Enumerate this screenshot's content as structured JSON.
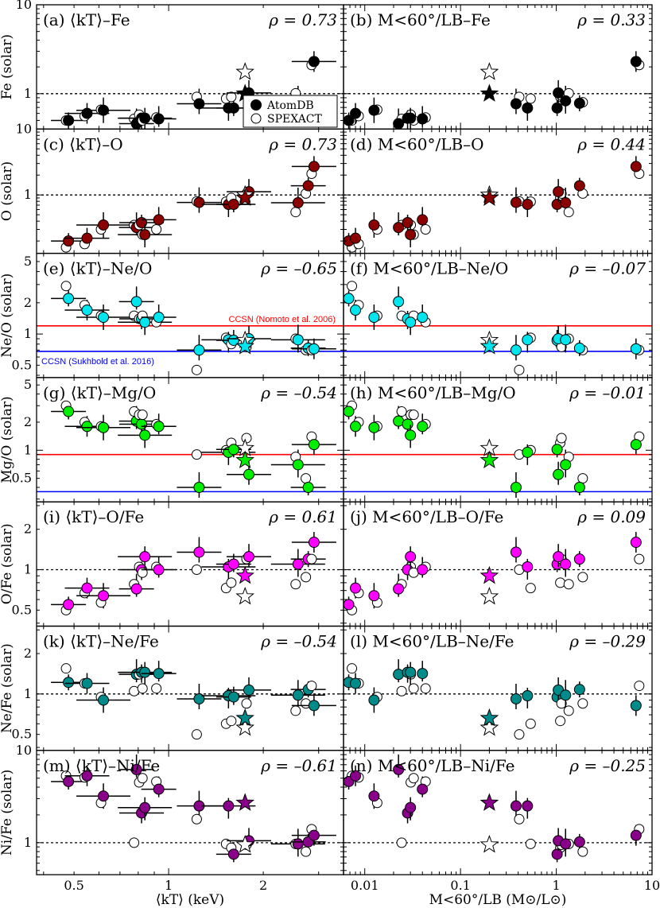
{
  "colors": {
    "fe": "#000000",
    "o": "#8b0000",
    "ne_o": "#00e5ee",
    "mg_o": "#00ee00",
    "o_fe": "#ff00ff",
    "ne_fe": "#008b8b",
    "ni_fe": "#8b008b",
    "ccsn_nomoto": "#ff0000",
    "ccsn_sukhbold": "#0000ff"
  },
  "legend": {
    "atomdb": "AtomDB",
    "spexact": "SPEXACT"
  },
  "ref_lines": {
    "nomoto_label": "CCSN (Nomoto et al. 2006)",
    "sukhbold_label": "CCSN (Sukhbold et al. 2016)",
    "ne_o_nomoto": 1.2,
    "ne_o_sukhbold": 0.68,
    "mg_o_nomoto": 0.9,
    "mg_o_sukhbold": 0.36
  },
  "x_axes": {
    "left": {
      "scale": "log",
      "range": [
        0.38,
        3.6
      ],
      "ticks": [
        "0.5",
        "1",
        "2"
      ],
      "tick_values": [
        0.5,
        1,
        2
      ],
      "label": "⟨kT⟩ (keV)"
    },
    "right": {
      "scale": "log",
      "range": [
        0.006,
        10
      ],
      "ticks": [
        "0.01",
        "0.1",
        "1",
        "10"
      ],
      "tick_values": [
        0.01,
        0.1,
        1,
        10
      ],
      "label": "M<60°/LB (M⊙/L⊙)"
    }
  },
  "rows": [
    {
      "key": "fe",
      "ylabel": "Fe (solar)",
      "ylim": [
        0.4,
        10
      ],
      "yticks": [
        "10",
        "1"
      ],
      "ytick_values": [
        10,
        1
      ],
      "dashed_line": 1,
      "left_title": "(a) ⟨kT⟩–Fe",
      "left_rho": "ρ = 0.73",
      "right_title": "(b) M<60°/LB–Fe",
      "right_rho": "ρ = 0.33"
    },
    {
      "key": "o",
      "ylabel": "O (solar)",
      "ylim": [
        0.13,
        10
      ],
      "yticks": [
        "10",
        "1"
      ],
      "ytick_values": [
        10,
        1
      ],
      "dashed_line": 1,
      "left_title": "(c) ⟨kT⟩–O",
      "left_rho": "ρ = 0.73",
      "right_title": "(d) M<60°/LB–O",
      "right_rho": "ρ = 0.44"
    },
    {
      "key": "ne_o",
      "ylabel": "Ne/O (solar)",
      "ylim": [
        0.38,
        6
      ],
      "yticks": [
        "5",
        "2",
        "1",
        "0.5"
      ],
      "ytick_values": [
        5,
        2,
        1,
        0.5
      ],
      "dashed_line": null,
      "ref": [
        "ne_o_nomoto",
        "ne_o_sukhbold"
      ],
      "left_title": "(e) ⟨kT⟩–Ne/O",
      "left_rho": "ρ = –0.65",
      "right_title": "(f) M<60°/LB–Ne/O",
      "right_rho": "ρ = –0.07"
    },
    {
      "key": "mg_o",
      "ylabel": "Mg/O (solar)",
      "ylim": [
        0.28,
        6
      ],
      "yticks": [
        "5",
        "2",
        "1",
        "0.5"
      ],
      "ytick_values": [
        5,
        2,
        1,
        0.5
      ],
      "dashed_line": null,
      "ref": [
        "mg_o_nomoto",
        "mg_o_sukhbold"
      ],
      "left_title": "(g) ⟨kT⟩–Mg/O",
      "left_rho": "ρ = –0.54",
      "right_title": "(h) M<60°/LB–Mg/O",
      "right_rho": "ρ = –0.01"
    },
    {
      "key": "o_fe",
      "ylabel": "O/Fe (solar)",
      "ylim": [
        0.38,
        3.2
      ],
      "yticks": [
        "2",
        "1",
        "0.5"
      ],
      "ytick_values": [
        2,
        1,
        0.5
      ],
      "dashed_line": 1,
      "left_title": "(i) ⟨kT⟩–O/Fe",
      "left_rho": "ρ = 0.61",
      "right_title": "(j) M<60°/LB–O/Fe",
      "right_rho": "ρ = 0.09"
    },
    {
      "key": "ne_fe",
      "ylabel": "Ne/Fe (solar)",
      "ylim": [
        0.38,
        3.2
      ],
      "yticks": [
        "2",
        "1",
        "0.5"
      ],
      "ytick_values": [
        2,
        1,
        0.5
      ],
      "dashed_line": 1,
      "left_title": "(k) ⟨kT⟩–Ne/Fe",
      "left_rho": "ρ = –0.54",
      "right_title": "(l) M<60°/LB–Ne/Fe",
      "right_rho": "ρ = –0.29"
    },
    {
      "key": "ni_fe",
      "ylabel": "Ni/Fe (solar)",
      "ylim": [
        0.45,
        10
      ],
      "yticks": [
        "10",
        "1"
      ],
      "ytick_values": [
        10,
        1
      ],
      "dashed_line": 1,
      "left_title": "(m) ⟨kT⟩–Ni/Fe",
      "left_rho": "ρ = –0.61",
      "right_title": "(n) M<60°/LB–Ni/Fe",
      "right_rho": "ρ = –0.25"
    }
  ],
  "chart_data": {
    "type": "scatter",
    "galaxy_kT": [
      0.48,
      0.55,
      0.62,
      0.79,
      0.82,
      0.84,
      0.93,
      1.25,
      1.55,
      1.61,
      1.8,
      2.58,
      2.78,
      2.9
    ],
    "galaxy_M_over_L": [
      0.0068,
      0.008,
      0.0125,
      0.0225,
      0.028,
      0.03,
      0.04,
      0.38,
      0.5,
      1.02,
      1.05,
      1.25,
      1.75,
      6.8
    ],
    "star_x_left": 1.75,
    "star_x_right": 0.2,
    "series": [
      {
        "name": "Fe",
        "atomdb": [
          0.5,
          0.6,
          0.65,
          0.46,
          0.53,
          0.53,
          0.52,
          0.77,
          0.69,
          0.69,
          1.02,
          0.83,
          0.78,
          2.3
        ],
        "spexact": [
          0.5,
          0.56,
          0.66,
          0.52,
          0.58,
          0.5,
          0.54,
          0.92,
          0.88,
          0.92,
          0.95,
          1.01,
          0.8,
          2.1
        ],
        "star": 1.0,
        "open_star": 1.75
      },
      {
        "name": "O",
        "atomdb": [
          0.2,
          0.22,
          0.35,
          0.32,
          0.38,
          0.25,
          0.42,
          0.77,
          0.72,
          0.72,
          1.12,
          0.76,
          1.38,
          2.7
        ],
        "spexact": [
          0.16,
          0.18,
          0.3,
          0.35,
          0.35,
          0.25,
          0.3,
          0.8,
          0.79,
          0.9,
          1.05,
          0.55,
          1.05,
          2.1
        ],
        "star": 0.9,
        "open_star": 1.0
      },
      {
        "name": "Ne/O",
        "atomdb": [
          2.2,
          1.7,
          1.45,
          2.05,
          1.4,
          1.3,
          1.45,
          0.7,
          0.88,
          0.87,
          0.9,
          0.88,
          0.73,
          0.72
        ],
        "spexact": [
          2.9,
          1.9,
          1.5,
          1.5,
          1.4,
          1.5,
          1.3,
          0.45,
          0.92,
          0.8,
          0.75,
          0.9,
          0.7,
          0.7
        ],
        "star": 0.76,
        "open_star": 0.87
      },
      {
        "name": "Mg/O",
        "atomdb": [
          2.6,
          1.8,
          1.75,
          2.05,
          1.9,
          1.45,
          1.8,
          0.4,
          0.95,
          1.02,
          0.55,
          0.7,
          0.4,
          1.15
        ],
        "spexact": [
          3.0,
          2.0,
          1.8,
          2.6,
          2.4,
          2.4,
          1.9,
          0.9,
          1.0,
          1.2,
          1.35,
          0.85,
          0.5,
          1.4
        ],
        "star": 0.78,
        "open_star": 1.05
      },
      {
        "name": "O/Fe",
        "atomdb": [
          0.55,
          0.73,
          0.64,
          0.72,
          1.0,
          1.25,
          1.0,
          1.35,
          1.05,
          1.1,
          1.25,
          1.1,
          1.2,
          1.6
        ],
        "spexact": [
          0.5,
          0.67,
          0.57,
          0.78,
          1.05,
          0.95,
          1.05,
          1.0,
          0.73,
          0.8,
          1.2,
          0.78,
          0.88,
          1.2
        ],
        "star": 0.9,
        "open_star": 0.63
      },
      {
        "name": "Ne/Fe",
        "atomdb": [
          1.22,
          1.2,
          0.9,
          1.4,
          1.45,
          1.45,
          1.42,
          0.92,
          0.97,
          0.95,
          1.07,
          0.98,
          1.08,
          0.82
        ],
        "spexact": [
          1.55,
          1.2,
          0.95,
          1.05,
          1.4,
          1.1,
          1.1,
          0.5,
          0.6,
          0.63,
          0.85,
          0.75,
          0.85,
          1.15
        ],
        "star": 0.66,
        "open_star": 0.56
      },
      {
        "name": "Ni/Fe",
        "atomdb": [
          4.6,
          5.3,
          3.2,
          6.2,
          2.1,
          2.4,
          3.8,
          2.5,
          2.5,
          0.75,
          1.05,
          0.97,
          1.02,
          1.2
        ],
        "spexact": [
          5.3,
          5.1,
          2.7,
          1.0,
          4.5,
          5.0,
          4.6,
          1.8,
          0.97,
          0.88,
          0.95,
          0.97,
          0.8,
          1.4
        ],
        "star": 2.7,
        "open_star": 0.95
      }
    ]
  }
}
